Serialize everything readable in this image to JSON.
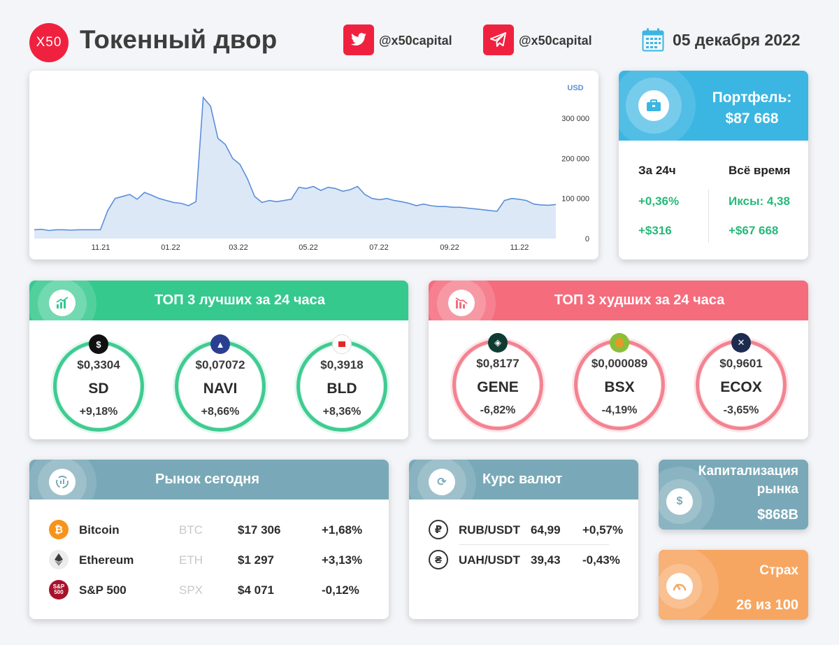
{
  "header": {
    "logo_text": "X50",
    "brand": "Токенный двор",
    "twitter": "@x50capital",
    "telegram": "@x50capital",
    "date": "05 декабря 2022"
  },
  "chart": {
    "unit": "USD",
    "y_ticks": [
      "300 000",
      "200 000",
      "100 000",
      "0"
    ],
    "x_ticks": [
      "11.21",
      "01.22",
      "03.22",
      "05.22",
      "07.22",
      "09.22",
      "11.22"
    ]
  },
  "chart_data": {
    "type": "area",
    "ylabel": "USD",
    "ylim": [
      0,
      370000
    ],
    "x_ticks": [
      "11.21",
      "01.22",
      "03.22",
      "05.22",
      "07.22",
      "09.22",
      "11.22"
    ],
    "y_ticks": [
      0,
      100000,
      200000,
      300000
    ],
    "grid": false,
    "series": [
      {
        "values": [
          22000,
          23000,
          20000,
          22000,
          22000,
          21000,
          22000,
          22000,
          22000,
          22000,
          70000,
          100000,
          105000,
          110000,
          98000,
          115000,
          108000,
          100000,
          95000,
          90000,
          88000,
          82000,
          92000,
          352000,
          330000,
          250000,
          235000,
          200000,
          185000,
          150000,
          105000,
          90000,
          95000,
          92000,
          95000,
          98000,
          128000,
          125000,
          130000,
          120000,
          128000,
          125000,
          118000,
          122000,
          130000,
          110000,
          100000,
          97000,
          100000,
          95000,
          92000,
          88000,
          82000,
          86000,
          82000,
          80000,
          80000,
          78000,
          78000,
          76000,
          74000,
          72000,
          70000,
          68000,
          95000,
          100000,
          98000,
          95000,
          86000,
          84000,
          83000,
          85000
        ]
      }
    ]
  },
  "portfolio": {
    "title": "Портфель:",
    "value": "$87 668",
    "col1_label": "За 24ч",
    "col2_label": "Всё время",
    "day_pct": "+0,36%",
    "day_usd": "+$316",
    "all_x": "Иксы: 4,38",
    "all_usd": "+$67 668"
  },
  "best": {
    "title": "ТОП 3 лучших за 24 часа",
    "coins": [
      {
        "price": "$0,3304",
        "symbol": "SD",
        "change": "+9,18%"
      },
      {
        "price": "$0,07072",
        "symbol": "NAVI",
        "change": "+8,66%"
      },
      {
        "price": "$0,3918",
        "symbol": "BLD",
        "change": "+8,36%"
      }
    ]
  },
  "worst": {
    "title": "ТОП 3 худших за 24 часа",
    "coins": [
      {
        "price": "$0,8177",
        "symbol": "GENE",
        "change": "-6,82%"
      },
      {
        "price": "$0,000089",
        "symbol": "BSX",
        "change": "-4,19%"
      },
      {
        "price": "$0,9601",
        "symbol": "ECOX",
        "change": "-3,65%"
      }
    ]
  },
  "market": {
    "title": "Рынок сегодня",
    "rows": [
      {
        "name": "Bitcoin",
        "ticker": "BTC",
        "price": "$17 306",
        "change": "+1,68%"
      },
      {
        "name": "Ethereum",
        "ticker": "ETH",
        "price": "$1 297",
        "change": "+3,13%"
      },
      {
        "name": "S&P 500",
        "ticker": "SPX",
        "price": "$4 071",
        "change": "-0,12%"
      }
    ]
  },
  "fx": {
    "title": "Курс валют",
    "rows": [
      {
        "pair": "RUB/USDT",
        "rate": "64,99",
        "change": "+0,57%"
      },
      {
        "pair": "UAH/USDT",
        "rate": "39,43",
        "change": "-0,43%"
      }
    ]
  },
  "cap": {
    "title_line1": "Капитализация",
    "title_line2": "рынка",
    "value": "$868B"
  },
  "fear": {
    "title": "Страх",
    "value": "26 из 100"
  },
  "colors": {
    "accent_red": "#f0213f",
    "green": "#27b87a",
    "red": "#ee2b45",
    "blue": "#3bb6e3",
    "teal": "#79a9b8",
    "orange": "#f7a662"
  }
}
